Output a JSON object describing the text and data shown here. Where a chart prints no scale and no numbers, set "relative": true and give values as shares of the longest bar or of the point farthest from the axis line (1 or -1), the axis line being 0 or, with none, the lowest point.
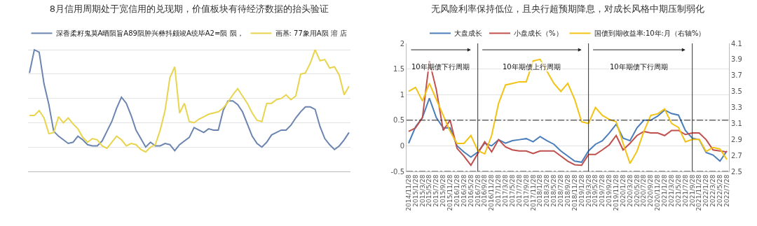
{
  "chart_data": [
    {
      "type": "line",
      "title": "8月信用周期处于宽信用的兑现期，价值板块有待经济数据的抬头验证",
      "relative": true,
      "grid": "y",
      "legend": "top",
      "marker": "none",
      "line_style": "solid",
      "categories": [
        null,
        null,
        null,
        null,
        null,
        null,
        null,
        null,
        null,
        null,
        null,
        null,
        null,
        null,
        null,
        null,
        null,
        null,
        null,
        null,
        null,
        null,
        null,
        null,
        null,
        null,
        null,
        null,
        null,
        null,
        null,
        null,
        null,
        null,
        null,
        null,
        null,
        null,
        null,
        null,
        null,
        null,
        null,
        null,
        null,
        null,
        null,
        null,
        null,
        null,
        null,
        null,
        null,
        null,
        null,
        null,
        null,
        null,
        null,
        null,
        null,
        null,
        null,
        null,
        null,
        null,
        null
      ],
      "series": [
        {
          "name": "深香柔籽鬼莫A晒陨旨A89陨肿兴彝抖颇竣A统毕A2=陨 陨，",
          "color": "#6b84b0",
          "values": [
            0.81,
            1.0,
            0.98,
            0.72,
            0.55,
            0.33,
            0.29,
            0.26,
            0.23,
            0.24,
            0.29,
            0.26,
            0.22,
            0.21,
            0.21,
            0.25,
            0.33,
            0.41,
            0.52,
            0.61,
            0.56,
            0.46,
            0.34,
            0.27,
            0.2,
            0.24,
            0.21,
            0.21,
            0.23,
            0.22,
            0.17,
            0.22,
            0.25,
            0.28,
            0.36,
            0.34,
            0.32,
            0.35,
            0.34,
            0.34,
            0.5,
            0.58,
            0.58,
            0.55,
            0.49,
            0.39,
            0.29,
            0.23,
            0.2,
            0.24,
            0.3,
            0.32,
            0.34,
            0.34,
            0.38,
            0.44,
            0.49,
            0.53,
            0.53,
            0.51,
            0.37,
            0.27,
            0.22,
            0.18,
            0.21,
            0.26,
            0.32
          ]
        },
        {
          "name": "画基: 77象用A陨 溶 店",
          "color": "#e8d44d",
          "values": [
            0.46,
            0.46,
            0.5,
            0.44,
            0.31,
            0.32,
            0.45,
            0.4,
            0.44,
            0.39,
            0.35,
            0.28,
            0.24,
            0.27,
            0.26,
            0.21,
            0.19,
            0.24,
            0.29,
            0.26,
            0.21,
            0.23,
            0.22,
            0.18,
            0.16,
            0.2,
            0.22,
            0.34,
            0.5,
            0.77,
            0.86,
            0.48,
            0.56,
            0.41,
            0.4,
            0.43,
            0.45,
            0.47,
            0.48,
            0.49,
            0.52,
            0.57,
            0.63,
            0.68,
            0.62,
            0.56,
            0.48,
            0.42,
            0.41,
            0.56,
            0.56,
            0.59,
            0.6,
            0.63,
            0.59,
            0.62,
            0.8,
            0.81,
            0.89,
            1.0,
            0.91,
            0.92,
            0.85,
            0.86,
            0.79,
            0.63,
            0.7
          ]
        }
      ]
    },
    {
      "type": "line",
      "title": "无风险利率保持低位，且央行超预期降息，对成长风格中期压制弱化",
      "grid": "y",
      "legend": "top",
      "marker": "none",
      "line_style": "solid",
      "categories": [
        "2014/11/28",
        "2015/1/28",
        "2015/3/28",
        "2015/5/28",
        "2015/7/28",
        "2015/9/28",
        "2015/11/28",
        "2016/1/28",
        "2016/3/28",
        "2016/5/28",
        "2016/7/28",
        "2016/9/28",
        "2016/11/28",
        "2017/1/28",
        "2017/3/28",
        "2017/5/28",
        "2017/7/28",
        "2017/9/28",
        "2017/11/28",
        "2018/1/28",
        "2018/3/28",
        "2018/5/28",
        "2018/7/28",
        "2018/9/28",
        "2018/11/28",
        "2019/1/28",
        "2019/3/28",
        "2019/5/28",
        "2019/7/28",
        "2019/9/28",
        "2019/11/28",
        "2020/1/28",
        "2020/3/28",
        "2020/5/28",
        "2020/7/28",
        "2020/9/28",
        "2020/11/28",
        "2021/1/28",
        "2021/3/28",
        "2021/5/28",
        "2021/7/28",
        "2021/9/28",
        "2021/11/28",
        "2022/1/28",
        "2022/3/28",
        "2022/5/28",
        "2022/7/28"
      ],
      "ylim": [
        -0.5,
        2
      ],
      "yticks": [
        -0.5,
        0,
        0.5,
        1,
        1.5,
        2
      ],
      "y2lim": [
        2.5,
        4.1
      ],
      "y2ticks": [
        2.5,
        2.7,
        2.9,
        3.1,
        3.3,
        3.5,
        3.7,
        3.9,
        4.1
      ],
      "series": [
        {
          "name": "大盘成长",
          "color": "#4a7ebb",
          "values": [
            0.05,
            0.37,
            0.55,
            0.93,
            0.55,
            0.35,
            0.35,
            0.0,
            -0.12,
            -0.22,
            -0.12,
            0.05,
            0.0,
            0.12,
            0.05,
            0.1,
            0.12,
            0.14,
            0.08,
            0.18,
            0.1,
            0.03,
            -0.1,
            -0.2,
            -0.3,
            -0.32,
            -0.1,
            0.03,
            0.1,
            0.25,
            0.42,
            0.15,
            0.1,
            0.35,
            0.5,
            0.5,
            0.58,
            0.7,
            0.63,
            0.6,
            0.3,
            0.15,
            0.12,
            -0.13,
            -0.18,
            -0.3,
            -0.1
          ]
        },
        {
          "name": "小盘成长（%）",
          "color": "#c0504d",
          "values": [
            0.28,
            0.35,
            0.55,
            1.65,
            1.1,
            0.3,
            0.5,
            -0.05,
            -0.2,
            -0.38,
            -0.15,
            0.08,
            -0.12,
            0.12,
            -0.02,
            -0.08,
            -0.1,
            -0.1,
            -0.15,
            -0.1,
            -0.1,
            -0.1,
            -0.2,
            -0.3,
            -0.37,
            -0.38,
            -0.17,
            -0.17,
            -0.08,
            0.02,
            0.2,
            -0.08,
            0.05,
            0.2,
            0.28,
            0.25,
            0.25,
            0.2,
            0.3,
            0.3,
            0.22,
            0.25,
            0.25,
            0.12,
            -0.08,
            -0.1,
            -0.12
          ]
        },
        {
          "name": "国债到期收益率:10年:月（右轴%）",
          "color": "#f2c314",
          "axis": "y2",
          "values": [
            3.5,
            3.55,
            3.38,
            3.6,
            3.4,
            3.2,
            3.0,
            2.85,
            2.85,
            2.95,
            2.76,
            2.72,
            2.95,
            3.35,
            3.58,
            3.6,
            3.62,
            3.62,
            3.88,
            3.9,
            3.75,
            3.6,
            3.5,
            3.6,
            3.4,
            3.12,
            3.1,
            3.3,
            3.2,
            3.15,
            3.12,
            2.85,
            2.6,
            2.75,
            3.0,
            3.2,
            3.22,
            3.28,
            3.1,
            3.05,
            2.87,
            2.9,
            2.9,
            2.75,
            2.8,
            2.78,
            2.65
          ]
        }
      ],
      "ref_lines": [
        {
          "axis": "x",
          "value": "2016/7/28",
          "line_style": "solid",
          "color": "#333333"
        },
        {
          "axis": "x",
          "value": "2019/3/28",
          "line_style": "solid",
          "color": "#333333"
        },
        {
          "axis": "x",
          "value": "2021/9/28",
          "line_style": "solid",
          "color": "#333333"
        },
        {
          "axis": "y",
          "value": 0.5,
          "line_style": "dashed",
          "color": "#222222"
        },
        {
          "axis": "y",
          "value": -0.5,
          "line_style": "dashed",
          "color": "#222222"
        }
      ],
      "annotations": [
        "10年期债下行周期",
        "10年期债上行周期",
        "10年期债下行周期"
      ]
    }
  ]
}
